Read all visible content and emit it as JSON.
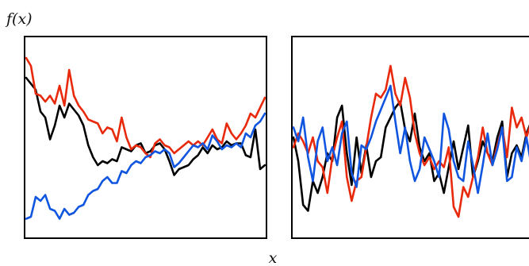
{
  "chart_data": [
    {
      "type": "line",
      "ylabel": "f(x)",
      "xlabel": "x",
      "xlim": [
        0,
        1
      ],
      "ylim": [
        0,
        1
      ],
      "grid": false,
      "series": [
        {
          "color": "#000000",
          "x": [
            0,
            0.02,
            0.04,
            0.06,
            0.08,
            0.1,
            0.12,
            0.14,
            0.16,
            0.18,
            0.2,
            0.22,
            0.24,
            0.26,
            0.28,
            0.3,
            0.32,
            0.34,
            0.36,
            0.38,
            0.4,
            0.42,
            0.44,
            0.46,
            0.48,
            0.5,
            0.52,
            0.54,
            0.56,
            0.58,
            0.6,
            0.62,
            0.64,
            0.66,
            0.68,
            0.7,
            0.72,
            0.74,
            0.76,
            0.78,
            0.8,
            0.82,
            0.84,
            0.86,
            0.88,
            0.9,
            0.92,
            0.94,
            0.96,
            0.98,
            1
          ],
          "y": [
            0.8,
            0.77,
            0.74,
            0.63,
            0.6,
            0.49,
            0.56,
            0.66,
            0.6,
            0.67,
            0.64,
            0.61,
            0.56,
            0.46,
            0.4,
            0.36,
            0.38,
            0.37,
            0.39,
            0.38,
            0.45,
            0.44,
            0.43,
            0.46,
            0.47,
            0.42,
            0.43,
            0.46,
            0.47,
            0.44,
            0.38,
            0.31,
            0.34,
            0.35,
            0.36,
            0.39,
            0.41,
            0.45,
            0.42,
            0.46,
            0.44,
            0.45,
            0.48,
            0.46,
            0.47,
            0.47,
            0.41,
            0.4,
            0.54,
            0.34,
            0.36
          ]
        },
        {
          "color": "#e8290c",
          "x": [
            0,
            0.02,
            0.04,
            0.06,
            0.08,
            0.1,
            0.12,
            0.14,
            0.16,
            0.18,
            0.2,
            0.22,
            0.24,
            0.26,
            0.28,
            0.3,
            0.32,
            0.34,
            0.36,
            0.38,
            0.4,
            0.42,
            0.44,
            0.46,
            0.48,
            0.5,
            0.52,
            0.54,
            0.56,
            0.58,
            0.6,
            0.62,
            0.64,
            0.66,
            0.68,
            0.7,
            0.72,
            0.74,
            0.76,
            0.78,
            0.8,
            0.82,
            0.84,
            0.86,
            0.88,
            0.9,
            0.92,
            0.94,
            0.96,
            0.98,
            1
          ],
          "y": [
            0.9,
            0.86,
            0.72,
            0.71,
            0.68,
            0.71,
            0.67,
            0.76,
            0.66,
            0.84,
            0.71,
            0.66,
            0.63,
            0.59,
            0.58,
            0.57,
            0.52,
            0.55,
            0.54,
            0.48,
            0.6,
            0.5,
            0.44,
            0.46,
            0.45,
            0.42,
            0.4,
            0.47,
            0.49,
            0.46,
            0.45,
            0.42,
            0.44,
            0.46,
            0.48,
            0.46,
            0.48,
            0.46,
            0.5,
            0.54,
            0.49,
            0.47,
            0.57,
            0.52,
            0.49,
            0.52,
            0.56,
            0.62,
            0.6,
            0.65,
            0.7
          ]
        },
        {
          "color": "#1055e0",
          "x": [
            0,
            0.02,
            0.04,
            0.06,
            0.08,
            0.1,
            0.12,
            0.14,
            0.16,
            0.18,
            0.2,
            0.22,
            0.24,
            0.26,
            0.28,
            0.3,
            0.32,
            0.34,
            0.36,
            0.38,
            0.4,
            0.42,
            0.44,
            0.46,
            0.48,
            0.5,
            0.52,
            0.54,
            0.56,
            0.58,
            0.6,
            0.62,
            0.64,
            0.66,
            0.68,
            0.7,
            0.72,
            0.74,
            0.76,
            0.78,
            0.8,
            0.82,
            0.84,
            0.86,
            0.88,
            0.9,
            0.92,
            0.94,
            0.96,
            0.98,
            1
          ],
          "y": [
            0.09,
            0.1,
            0.2,
            0.18,
            0.21,
            0.14,
            0.13,
            0.09,
            0.14,
            0.11,
            0.12,
            0.15,
            0.16,
            0.21,
            0.23,
            0.24,
            0.28,
            0.3,
            0.27,
            0.27,
            0.33,
            0.32,
            0.36,
            0.38,
            0.37,
            0.4,
            0.41,
            0.43,
            0.42,
            0.44,
            0.42,
            0.35,
            0.37,
            0.4,
            0.43,
            0.46,
            0.45,
            0.47,
            0.44,
            0.51,
            0.48,
            0.44,
            0.46,
            0.45,
            0.47,
            0.45,
            0.52,
            0.5,
            0.56,
            0.58,
            0.62
          ]
        }
      ]
    },
    {
      "type": "line",
      "xlim": [
        0,
        1
      ],
      "ylim": [
        0,
        1
      ],
      "grid": false,
      "series": [
        {
          "color": "#000000",
          "x": [
            0,
            0.02,
            0.04,
            0.06,
            0.08,
            0.1,
            0.12,
            0.14,
            0.16,
            0.18,
            0.2,
            0.22,
            0.24,
            0.26,
            0.28,
            0.3,
            0.32,
            0.34,
            0.36,
            0.38,
            0.4,
            0.42,
            0.44,
            0.46,
            0.48,
            0.5,
            0.52,
            0.54,
            0.56,
            0.58,
            0.6,
            0.62,
            0.64,
            0.66,
            0.68,
            0.7,
            0.72,
            0.74,
            0.76,
            0.78,
            0.8,
            0.82,
            0.84,
            0.86,
            0.88,
            0.9,
            0.92,
            0.94,
            0.96,
            0.98,
            1
          ],
          "y": [
            0.5,
            0.38,
            0.16,
            0.13,
            0.28,
            0.22,
            0.3,
            0.42,
            0.38,
            0.6,
            0.66,
            0.42,
            0.26,
            0.5,
            0.32,
            0.46,
            0.3,
            0.38,
            0.4,
            0.55,
            0.6,
            0.65,
            0.68,
            0.54,
            0.48,
            0.62,
            0.45,
            0.38,
            0.42,
            0.28,
            0.32,
            0.22,
            0.35,
            0.48,
            0.34,
            0.45,
            0.56,
            0.3,
            0.38,
            0.48,
            0.42,
            0.38,
            0.5,
            0.58,
            0.3,
            0.42,
            0.46,
            0.4,
            0.52,
            0.58,
            0.7
          ]
        },
        {
          "color": "#e8290c",
          "x": [
            0,
            0.02,
            0.04,
            0.06,
            0.08,
            0.1,
            0.12,
            0.14,
            0.16,
            0.18,
            0.2,
            0.22,
            0.24,
            0.26,
            0.28,
            0.3,
            0.32,
            0.34,
            0.36,
            0.38,
            0.4,
            0.42,
            0.44,
            0.46,
            0.48,
            0.5,
            0.52,
            0.54,
            0.56,
            0.58,
            0.6,
            0.62,
            0.64,
            0.66,
            0.68,
            0.7,
            0.72,
            0.74,
            0.76,
            0.78,
            0.8,
            0.82,
            0.84,
            0.86,
            0.88,
            0.9,
            0.92,
            0.94,
            0.96,
            0.98,
            1
          ],
          "y": [
            0.45,
            0.52,
            0.48,
            0.42,
            0.5,
            0.38,
            0.35,
            0.22,
            0.4,
            0.5,
            0.58,
            0.3,
            0.18,
            0.28,
            0.3,
            0.45,
            0.6,
            0.72,
            0.7,
            0.74,
            0.86,
            0.72,
            0.66,
            0.8,
            0.7,
            0.52,
            0.42,
            0.36,
            0.4,
            0.34,
            0.38,
            0.35,
            0.45,
            0.15,
            0.1,
            0.25,
            0.2,
            0.3,
            0.4,
            0.55,
            0.42,
            0.36,
            0.46,
            0.55,
            0.4,
            0.65,
            0.55,
            0.6,
            0.5,
            0.58,
            0.8
          ]
        },
        {
          "color": "#1055e0",
          "x": [
            0,
            0.02,
            0.04,
            0.06,
            0.08,
            0.1,
            0.12,
            0.14,
            0.16,
            0.18,
            0.2,
            0.22,
            0.24,
            0.26,
            0.28,
            0.3,
            0.32,
            0.34,
            0.36,
            0.38,
            0.4,
            0.42,
            0.44,
            0.46,
            0.48,
            0.5,
            0.52,
            0.54,
            0.56,
            0.58,
            0.6,
            0.62,
            0.64,
            0.66,
            0.68,
            0.7,
            0.72,
            0.74,
            0.76,
            0.78,
            0.8,
            0.82,
            0.84,
            0.86,
            0.88,
            0.9,
            0.92,
            0.94,
            0.96,
            0.98,
            1
          ],
          "y": [
            0.55,
            0.48,
            0.6,
            0.4,
            0.28,
            0.48,
            0.55,
            0.38,
            0.45,
            0.36,
            0.52,
            0.58,
            0.32,
            0.25,
            0.46,
            0.44,
            0.5,
            0.58,
            0.64,
            0.7,
            0.76,
            0.58,
            0.42,
            0.55,
            0.38,
            0.28,
            0.34,
            0.5,
            0.44,
            0.38,
            0.3,
            0.62,
            0.54,
            0.38,
            0.3,
            0.28,
            0.48,
            0.36,
            0.22,
            0.36,
            0.52,
            0.36,
            0.44,
            0.55,
            0.28,
            0.3,
            0.45,
            0.38,
            0.5,
            0.36,
            0.18
          ]
        }
      ]
    }
  ]
}
